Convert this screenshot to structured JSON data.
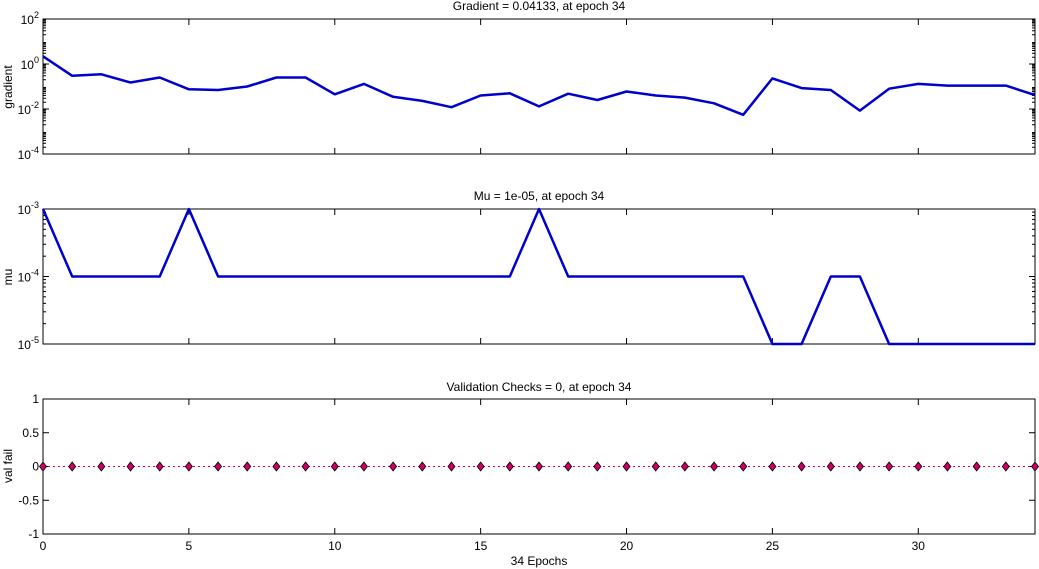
{
  "chart_data": [
    {
      "type": "line",
      "title": "Gradient = 0.04133, at epoch 34",
      "ylabel": "gradient",
      "xlabel": "",
      "yscale": "log",
      "xlim": [
        0,
        34
      ],
      "ylim": [
        0.0001,
        100
      ],
      "xticks": [
        0,
        5,
        10,
        15,
        20,
        25,
        30
      ],
      "xtick_labels": [
        "0",
        "5",
        "10",
        "15",
        "20",
        "25",
        "30"
      ],
      "yticks": [
        0.0001,
        0.01,
        1,
        100
      ],
      "ytick_labels": [
        {
          "base": "10",
          "exp": "-4"
        },
        {
          "base": "10",
          "exp": "-2"
        },
        {
          "base": "10",
          "exp": "0"
        },
        {
          "base": "10",
          "exp": "2"
        }
      ],
      "color": "#0000CC",
      "x": [
        0,
        1,
        2,
        3,
        4,
        5,
        6,
        7,
        8,
        9,
        10,
        11,
        12,
        13,
        14,
        15,
        16,
        17,
        18,
        19,
        20,
        21,
        22,
        23,
        24,
        25,
        26,
        27,
        28,
        29,
        30,
        31,
        32,
        33,
        34
      ],
      "values": [
        2.2,
        0.3,
        0.35,
        0.15,
        0.25,
        0.075,
        0.07,
        0.1,
        0.25,
        0.25,
        0.045,
        0.13,
        0.035,
        0.023,
        0.012,
        0.04,
        0.05,
        0.013,
        0.048,
        0.025,
        0.06,
        0.04,
        0.032,
        0.018,
        0.0055,
        0.23,
        0.085,
        0.07,
        0.0085,
        0.08,
        0.13,
        0.11,
        0.11,
        0.11,
        0.04133
      ]
    },
    {
      "type": "line",
      "title": "Mu = 1e-05, at epoch 34",
      "ylabel": "mu",
      "xlabel": "",
      "yscale": "log",
      "xlim": [
        0,
        34
      ],
      "ylim": [
        1e-05,
        0.001
      ],
      "xticks": [
        0,
        5,
        10,
        15,
        20,
        25,
        30
      ],
      "xtick_labels": [
        "0",
        "5",
        "10",
        "15",
        "20",
        "25",
        "30"
      ],
      "yticks": [
        1e-05,
        0.0001,
        0.001
      ],
      "ytick_labels": [
        {
          "base": "10",
          "exp": "-5"
        },
        {
          "base": "10",
          "exp": "-4"
        },
        {
          "base": "10",
          "exp": "-3"
        }
      ],
      "color": "#0000CC",
      "x": [
        0,
        1,
        2,
        3,
        4,
        5,
        6,
        7,
        8,
        9,
        10,
        11,
        12,
        13,
        14,
        15,
        16,
        17,
        18,
        19,
        20,
        21,
        22,
        23,
        24,
        25,
        26,
        27,
        28,
        29,
        30,
        31,
        32,
        33,
        34
      ],
      "values": [
        0.001,
        0.0001,
        0.0001,
        0.0001,
        0.0001,
        0.001,
        0.0001,
        0.0001,
        0.0001,
        0.0001,
        0.0001,
        0.0001,
        0.0001,
        0.0001,
        0.0001,
        0.0001,
        0.0001,
        0.001,
        0.0001,
        0.0001,
        0.0001,
        0.0001,
        0.0001,
        0.0001,
        0.0001,
        1e-05,
        1e-05,
        0.0001,
        0.0001,
        1e-05,
        1e-05,
        1e-05,
        1e-05,
        1e-05,
        1e-05
      ]
    },
    {
      "type": "scatter",
      "title": "Validation Checks = 0, at epoch 34",
      "ylabel": "val fail",
      "xlabel": "34 Epochs",
      "yscale": "linear",
      "xlim": [
        0,
        34
      ],
      "ylim": [
        -1,
        1
      ],
      "xticks": [
        0,
        5,
        10,
        15,
        20,
        25,
        30
      ],
      "xtick_labels": [
        "0",
        "5",
        "10",
        "15",
        "20",
        "25",
        "30"
      ],
      "yticks": [
        -1,
        -0.5,
        0,
        0.5,
        1
      ],
      "ytick_labels": [
        "-1",
        "-0.5",
        "0",
        "0.5",
        "1"
      ],
      "color": "#CC0066",
      "marker": "diamond",
      "x": [
        0,
        1,
        2,
        3,
        4,
        5,
        6,
        7,
        8,
        9,
        10,
        11,
        12,
        13,
        14,
        15,
        16,
        17,
        18,
        19,
        20,
        21,
        22,
        23,
        24,
        25,
        26,
        27,
        28,
        29,
        30,
        31,
        32,
        33,
        34
      ],
      "values": [
        0,
        0,
        0,
        0,
        0,
        0,
        0,
        0,
        0,
        0,
        0,
        0,
        0,
        0,
        0,
        0,
        0,
        0,
        0,
        0,
        0,
        0,
        0,
        0,
        0,
        0,
        0,
        0,
        0,
        0,
        0,
        0,
        0,
        0,
        0
      ]
    }
  ]
}
